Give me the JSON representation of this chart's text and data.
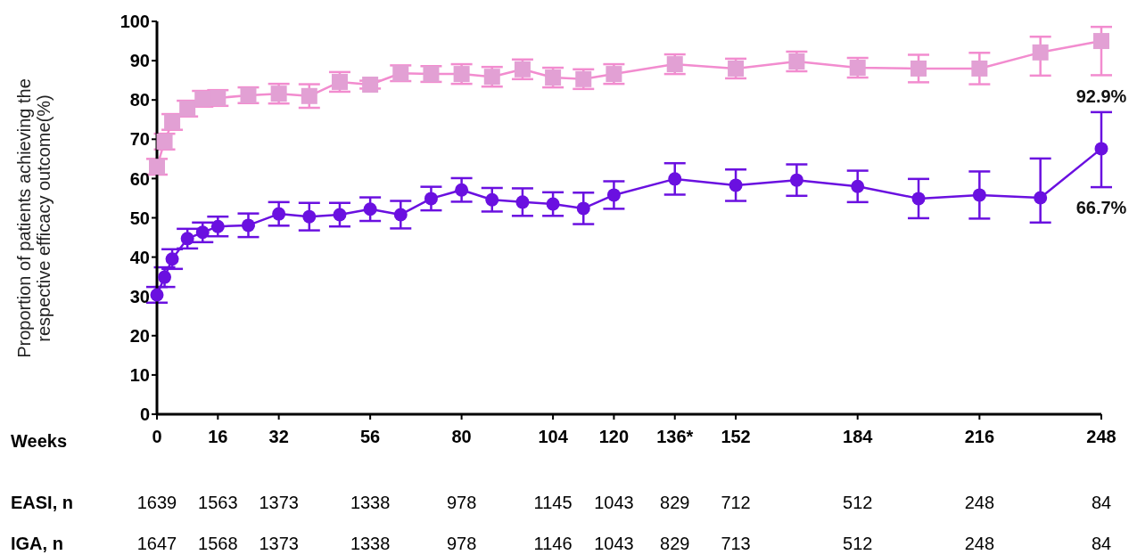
{
  "chart_data": {
    "type": "line",
    "xlabel": "Weeks",
    "ylabel": "Proportion of patients achieving the respective efficacy outcome(%)",
    "x": [
      0,
      2,
      4,
      8,
      12,
      16,
      24,
      32,
      40,
      48,
      56,
      64,
      72,
      80,
      88,
      96,
      104,
      112,
      120,
      136,
      152,
      168,
      184,
      200,
      216,
      232,
      248
    ],
    "xlim": [
      0,
      248
    ],
    "xticks": [
      0,
      16,
      32,
      56,
      80,
      104,
      120,
      {
        "value": 136,
        "label": "136*"
      },
      152,
      184,
      216,
      248
    ],
    "ylim": [
      0,
      100
    ],
    "yticks": [
      0,
      10,
      20,
      30,
      40,
      50,
      60,
      70,
      80,
      90,
      100
    ],
    "series": [
      {
        "color": "#f28ccf",
        "marker": "square",
        "values": [
          63.0,
          69.4,
          74.4,
          77.8,
          80.3,
          80.5,
          81.2,
          81.6,
          81.0,
          84.6,
          83.9,
          86.8,
          86.6,
          86.6,
          85.9,
          87.8,
          85.7,
          85.3,
          86.6,
          89.1,
          88.0,
          89.8,
          88.2,
          88.0,
          88.0,
          92.1,
          95.0
        ],
        "errors": [
          2,
          2,
          2,
          2,
          2,
          2,
          2,
          2.5,
          3,
          2.5,
          1,
          2,
          2,
          2.5,
          2.5,
          2.5,
          2.5,
          2.5,
          2.5,
          2.5,
          2.5,
          2.5,
          2.5,
          3.5,
          4,
          [
            86.2,
            96.1
          ],
          [
            86.3,
            98.6
          ]
        ]
      },
      {
        "color": "#6a10e0",
        "marker": "circle",
        "values": [
          30.4,
          34.9,
          39.5,
          44.7,
          46.3,
          47.8,
          48.1,
          51.0,
          50.3,
          50.8,
          52.2,
          50.8,
          54.9,
          57.1,
          54.6,
          54.0,
          53.5,
          52.4,
          55.8,
          59.9,
          58.3,
          59.6,
          58.0,
          54.9,
          55.8,
          55.1,
          67.6
        ],
        "errors": [
          2,
          2.5,
          2.5,
          2.5,
          2.5,
          2.5,
          3,
          3,
          3.5,
          3,
          3,
          3.5,
          3,
          3,
          3,
          3.5,
          3,
          4,
          3.5,
          4,
          4,
          4,
          4,
          5,
          6,
          [
            48.8,
            65.1
          ],
          [
            57.8,
            76.9
          ]
        ]
      }
    ],
    "annotations": [
      {
        "text": "92.9%",
        "x": 248,
        "y": 95.0
      },
      {
        "text": "66.7%",
        "x": 248,
        "y": 67.6
      },
      "EASI, n",
      "1639",
      "1563",
      "1373",
      "1338",
      "978",
      "1145",
      "1043",
      "829",
      "712",
      "512",
      "248",
      "84",
      "IGA, n",
      "1647",
      "1568",
      "1373",
      "1338",
      "978",
      "1146",
      "1043",
      "829",
      "713",
      "512",
      "248",
      "84"
    ]
  }
}
